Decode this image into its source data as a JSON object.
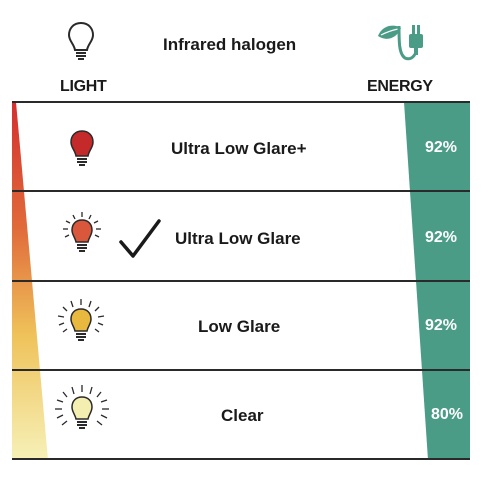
{
  "header": {
    "title": "Infrared halogen",
    "light_label": "LIGHT",
    "energy_label": "ENERGY"
  },
  "rows": [
    {
      "label": "Ultra Low Glare+",
      "energy": "92%",
      "bulb_color": "#c52a2a",
      "rays": 0,
      "selected": false
    },
    {
      "label": "Ultra Low Glare",
      "energy": "92%",
      "bulb_color": "#d9573a",
      "rays": 10,
      "selected": true
    },
    {
      "label": "Low Glare",
      "energy": "92%",
      "bulb_color": "#e9b83f",
      "rays": 14,
      "selected": false
    },
    {
      "label": "Clear",
      "energy": "80%",
      "bulb_color": "#f4eeb0",
      "rays": 18,
      "selected": false
    }
  ],
  "colors": {
    "energy_teal": "#4a9c86",
    "light_gradient": [
      "#d42f2f",
      "#e06a3a",
      "#efc25a",
      "#f6f1b8"
    ]
  },
  "icons": {
    "header_light": "lightbulb-outline-icon",
    "header_energy": "leaf-plug-icon",
    "selected_mark": "checkmark-icon"
  }
}
